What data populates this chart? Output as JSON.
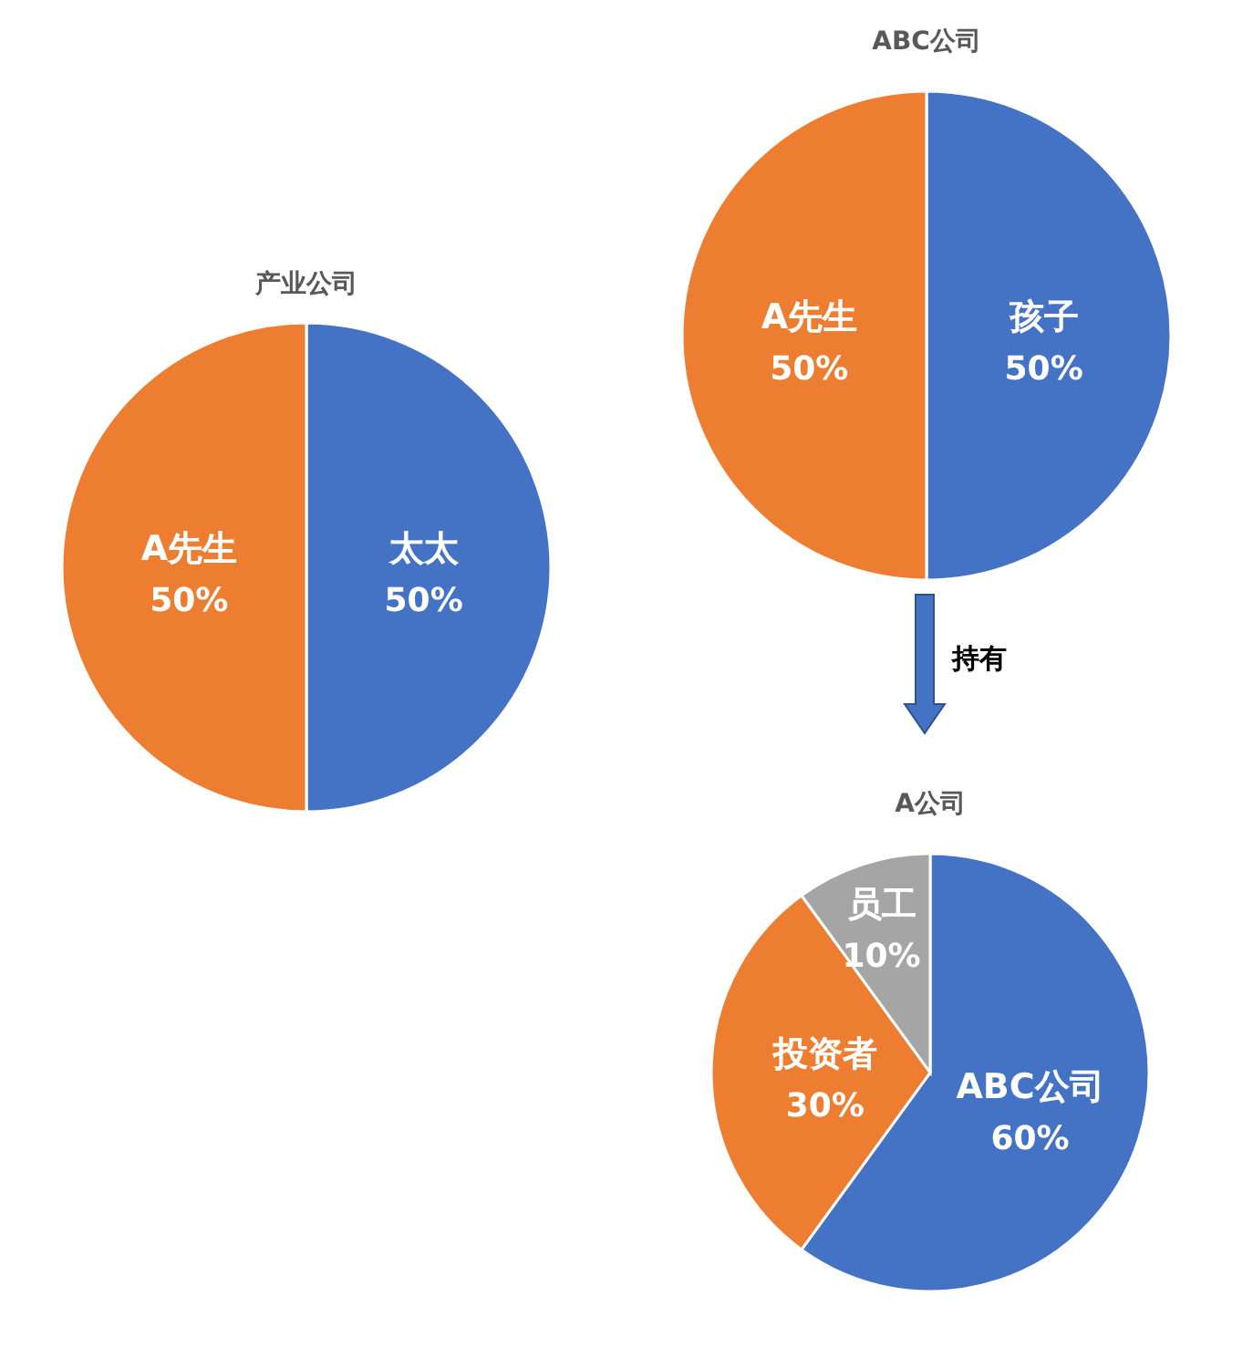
{
  "chart_data": [
    {
      "type": "pie",
      "title": "产业公司",
      "categories": [
        "太太",
        "A先生"
      ],
      "values": [
        50,
        50
      ],
      "colors": [
        "#4472c4",
        "#ed7d31"
      ],
      "value_labels": [
        "50%",
        "50%"
      ]
    },
    {
      "type": "pie",
      "title": "ABC公司",
      "categories": [
        "孩子",
        "A先生"
      ],
      "values": [
        50,
        50
      ],
      "colors": [
        "#4472c4",
        "#ed7d31"
      ],
      "value_labels": [
        "50%",
        "50%"
      ],
      "annotations": [
        "持有"
      ]
    },
    {
      "type": "pie",
      "title": "A公司",
      "categories": [
        "ABC公司",
        "投资者",
        "员工"
      ],
      "values": [
        60,
        30,
        10
      ],
      "colors": [
        "#4472c4",
        "#ed7d31",
        "#a5a5a5"
      ],
      "value_labels": [
        "60%",
        "30%",
        "10%"
      ]
    }
  ]
}
